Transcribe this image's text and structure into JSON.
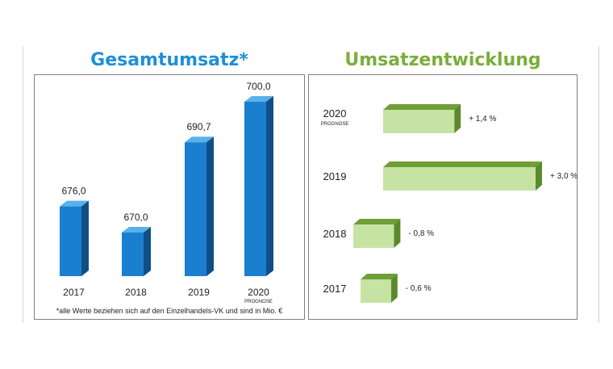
{
  "titles": {
    "left": "Gesamtumsatz*",
    "right": "Umsatzentwicklung"
  },
  "footnote": "*alle Werte beziehen sich auf den Einzelhandels-VK und sind in Mio. €",
  "colors": {
    "bar_front": "#1b7fd0",
    "bar_side": "#0f4f86",
    "bar_top": "#5ab0ea",
    "hbar_front": "#c6e3a4",
    "hbar_top": "#6f9e36",
    "hbar_side": "#5b8a2c"
  },
  "chart_data": [
    {
      "type": "bar",
      "title": "Gesamtumsatz*",
      "categories": [
        "2017",
        "2018",
        "2019",
        "2020"
      ],
      "sublabels": [
        "",
        "",
        "",
        "PROGNOSE"
      ],
      "values": [
        676.0,
        670.0,
        690.7,
        700.0
      ],
      "value_labels": [
        "676,0",
        "670,0",
        "690,7",
        "700,0"
      ],
      "xlabel": "",
      "ylabel": "",
      "ylim": [
        660,
        700
      ],
      "grid": false,
      "legend": "none"
    },
    {
      "type": "bar",
      "orientation": "horizontal",
      "title": "Umsatzentwicklung",
      "categories": [
        "2020",
        "2019",
        "2018",
        "2017"
      ],
      "sublabels": [
        "PROGNOSE",
        "",
        "",
        ""
      ],
      "values": [
        1.4,
        3.0,
        -0.8,
        -0.6
      ],
      "value_labels": [
        "+ 1,4 %",
        "+ 3,0 %",
        "- 0,8 %",
        "- 0,6 %"
      ],
      "xlabel": "",
      "ylabel": "",
      "grid": false,
      "legend": "none"
    }
  ]
}
